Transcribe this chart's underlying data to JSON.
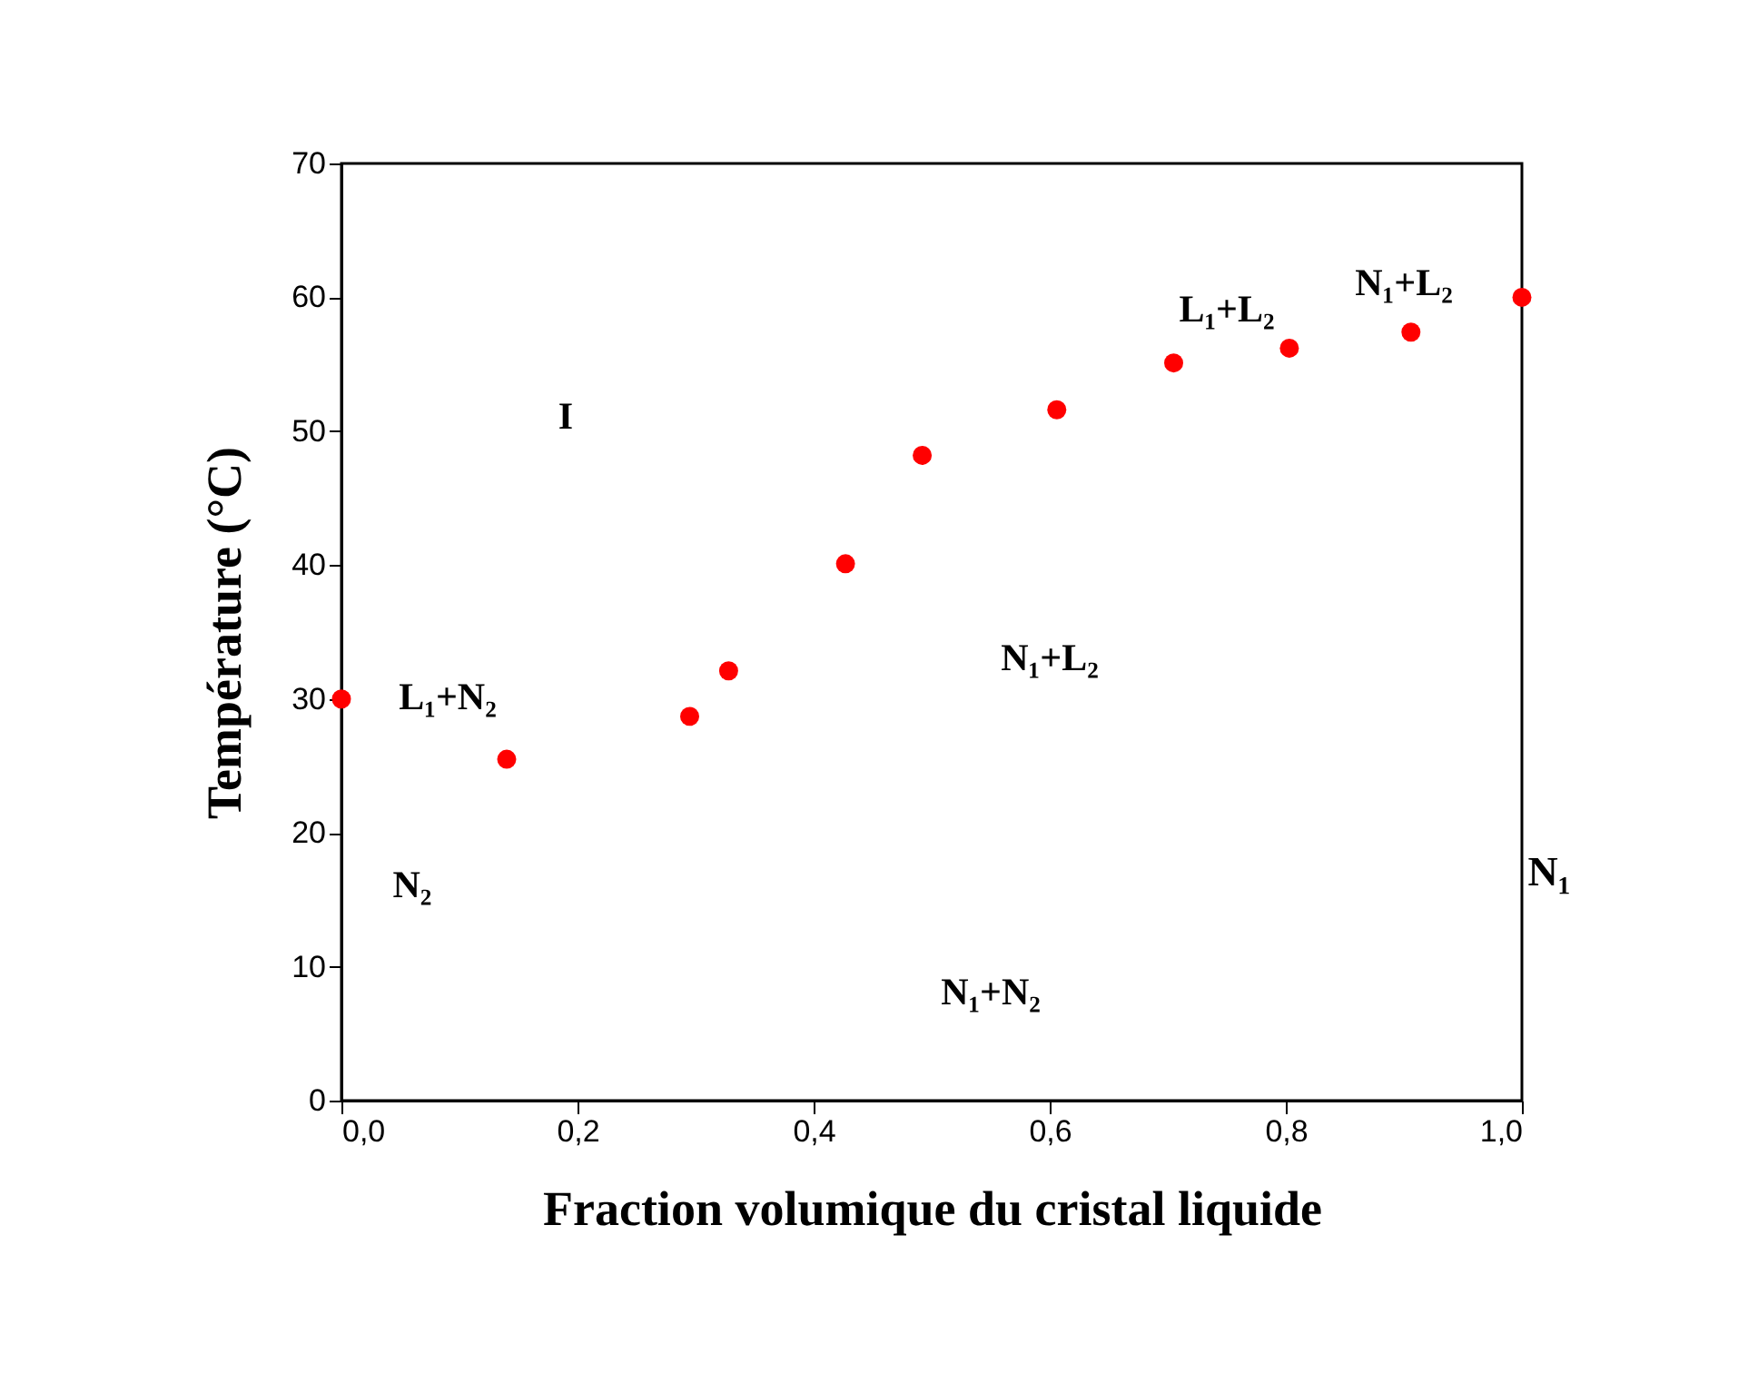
{
  "chart_data": {
    "type": "scatter",
    "xlabel": "Fraction volumique du cristal liquide",
    "ylabel": "Température (°C)",
    "x": [
      0.0,
      0.14,
      0.295,
      0.328,
      0.427,
      0.492,
      0.606,
      0.705,
      0.803,
      0.906,
      1.0
    ],
    "series": [
      {
        "color": "#ff0000",
        "values": [
          30.0,
          25.5,
          28.7,
          32.1,
          40.1,
          48.2,
          51.6,
          55.1,
          56.2,
          57.4,
          60.0
        ]
      }
    ],
    "marker": "circle",
    "grid": false,
    "xlim": [
      0,
      1
    ],
    "xticks": [
      {
        "value": 0,
        "label": "0,0"
      },
      {
        "value": 0.2,
        "label": "0,2"
      },
      {
        "value": 0.4,
        "label": "0,4"
      },
      {
        "value": 0.6,
        "label": "0,6"
      },
      {
        "value": 0.8,
        "label": "0,8"
      },
      {
        "value": 1.0,
        "label": "1,0"
      }
    ],
    "ylim": [
      0,
      70
    ],
    "yticks": [
      0,
      10,
      20,
      30,
      40,
      50,
      60,
      70
    ],
    "annotations": [
      "I",
      "L₁+N₂",
      "N₂",
      "N₁+N₂",
      "N₁+L₂",
      "L₁+L₂",
      "N₁+L₂",
      "N₁"
    ]
  }
}
